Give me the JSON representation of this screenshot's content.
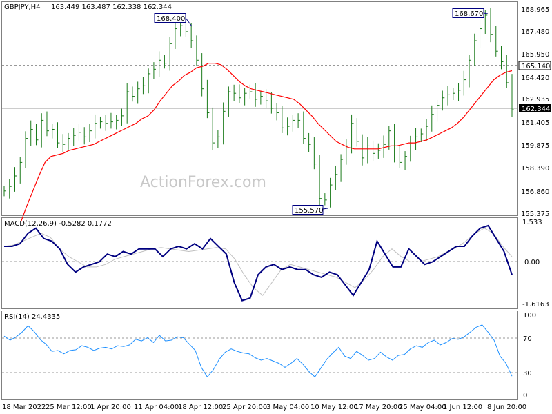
{
  "header": {
    "symbol": "GBPJPY,H4",
    "ohlc": "163.449 163.487 162.338 162.344"
  },
  "watermark": "ActionForex.com",
  "colors": {
    "candle": "#1a7a1a",
    "ma": "#ff0000",
    "macd": "#000080",
    "signal": "#c0c0c0",
    "rsi": "#1e90ff",
    "grid": "#808080"
  },
  "chart_data": [
    {
      "type": "line",
      "panel": "price",
      "title": "GBPJPY,H4",
      "ylim": [
        155.375,
        168.965
      ],
      "y_ticks": [
        "168.965",
        "167.480",
        "165.950",
        "164.420",
        "162.935",
        "161.405",
        "159.875",
        "158.390",
        "156.860",
        "155.375"
      ],
      "x_ticks": [
        "18 Mar 2022",
        "25 Mar 12:00",
        "1 Apr 20:00",
        "11 Apr 04:00",
        "18 Apr 12:00",
        "25 Apr 20:00",
        "3 May 04:00",
        "10 May 12:00",
        "17 May 20:00",
        "25 May 04:00",
        "1 Jun 12:00",
        "8 Jun 20:00"
      ],
      "annotations": [
        "168.400",
        "168.670",
        "155.570"
      ],
      "hlines": [
        "165.140",
        "162.344"
      ],
      "series": [
        {
          "values": [
            156.9,
            157.2,
            157.9,
            158.8,
            160.4,
            161.0,
            160.3,
            161.6,
            160.9,
            161.0,
            160.1,
            160.0,
            160.4,
            160.6,
            160.8,
            160.5,
            160.9,
            161.4,
            161.5,
            161.4,
            161.5,
            161.6,
            161.9,
            163.5,
            163.2,
            163.7,
            163.9,
            164.7,
            165.0,
            165.6,
            165.4,
            166.7,
            167.7,
            167.9,
            167.5,
            166.9,
            165.6,
            163.7,
            162.1,
            160.1,
            160.5,
            162.2,
            163.5,
            163.4,
            163.1,
            163.4,
            163.5,
            163.0,
            163.2,
            162.9,
            162.4,
            162.1,
            161.1,
            161.2,
            161.6,
            161.6,
            160.4,
            160.0,
            158.7,
            156.4,
            156.3,
            157.3,
            158.0,
            159.0,
            159.9,
            161.4,
            160.2,
            159.1,
            159.9,
            159.4,
            159.6,
            160.0,
            160.9,
            159.3,
            158.8,
            159.2,
            160.1,
            160.5,
            160.7,
            161.2,
            162.0,
            162.6,
            163.1,
            163.3,
            163.4,
            163.6,
            164.3,
            165.6,
            166.9,
            167.7,
            168.6,
            167.3,
            166.2,
            165.5,
            164.1,
            162.3
          ]
        },
        {
          "name": "MA",
          "values": [
            154.8,
            155.9,
            156.9,
            157.9,
            158.8,
            159.2,
            159.3,
            159.4,
            159.6,
            159.7,
            159.8,
            159.9,
            160.0,
            160.2,
            160.4,
            160.6,
            160.8,
            161.0,
            161.2,
            161.4,
            161.7,
            161.9,
            162.3,
            162.9,
            163.4,
            163.9,
            164.2,
            164.6,
            164.8,
            165.1,
            165.2,
            165.4,
            165.4,
            165.3,
            165.0,
            164.6,
            164.2,
            163.9,
            163.7,
            163.6,
            163.5,
            163.4,
            163.3,
            163.2,
            163.1,
            163.0,
            162.7,
            162.3,
            161.9,
            161.4,
            161.0,
            160.6,
            160.2,
            160.0,
            159.8,
            159.7,
            159.7,
            159.7,
            159.7,
            159.7,
            159.8,
            159.9,
            159.9,
            160.0,
            160.1,
            160.1,
            160.2,
            160.3,
            160.5,
            160.7,
            160.9,
            161.1,
            161.4,
            161.8,
            162.3,
            162.8,
            163.3,
            163.8,
            164.3,
            164.6,
            164.8,
            164.9
          ]
        }
      ]
    },
    {
      "type": "line",
      "panel": "macd",
      "title": "MACD(12,26,9) -0.5282 0.1772",
      "ylim": [
        -1.6163,
        1.533
      ],
      "y_ticks": [
        "1.533",
        "0.00",
        "-1.6163"
      ],
      "series": [
        {
          "name": "MACD",
          "values": [
            0.6,
            0.6,
            0.7,
            1.1,
            1.3,
            0.9,
            0.8,
            0.5,
            -0.1,
            -0.4,
            -0.2,
            -0.1,
            0.0,
            0.3,
            0.2,
            0.4,
            0.3,
            0.5,
            0.5,
            0.5,
            0.2,
            0.5,
            0.6,
            0.5,
            0.7,
            0.5,
            0.9,
            0.6,
            0.3,
            -0.8,
            -1.5,
            -1.4,
            -0.5,
            -0.2,
            -0.1,
            -0.3,
            -0.2,
            -0.3,
            -0.3,
            -0.5,
            -0.6,
            -0.4,
            -0.5,
            -0.9,
            -1.3,
            -0.8,
            -0.3,
            0.8,
            0.3,
            -0.2,
            -0.2,
            0.5,
            0.2,
            -0.1,
            0.0,
            0.2,
            0.4,
            0.6,
            0.6,
            1.0,
            1.3,
            1.4,
            0.9,
            0.4,
            -0.5
          ]
        },
        {
          "name": "Signal",
          "values": [
            0.6,
            0.65,
            0.8,
            0.95,
            1.1,
            0.95,
            0.5,
            0.2,
            0.0,
            -0.2,
            -0.2,
            -0.1,
            0.1,
            0.2,
            0.3,
            0.4,
            0.5,
            0.55,
            0.5,
            0.45,
            0.4,
            0.45,
            0.5,
            0.55,
            0.5,
            0.1,
            -0.5,
            -1.0,
            -1.3,
            -0.8,
            -0.3,
            -0.1,
            -0.2,
            -0.3,
            -0.4,
            -0.5,
            -0.6,
            -0.8,
            -1.0,
            -0.7,
            -0.3,
            0.2,
            0.5,
            0.2,
            0.0,
            0.0,
            0.1,
            0.2,
            0.4,
            0.55,
            0.8,
            1.1,
            1.3,
            1.1,
            0.6,
            0.2
          ]
        }
      ]
    },
    {
      "type": "line",
      "panel": "rsi",
      "title": "RSI(14) 24.4335",
      "ylim": [
        0,
        100
      ],
      "y_ticks": [
        "100",
        "70",
        "30",
        "0"
      ],
      "hlines": [
        70,
        30
      ],
      "series": [
        {
          "name": "RSI",
          "values": [
            74,
            69,
            73,
            79,
            87,
            80,
            70,
            64,
            55,
            56,
            52,
            56,
            57,
            62,
            60,
            56,
            59,
            60,
            58,
            62,
            61,
            63,
            70,
            68,
            72,
            66,
            75,
            68,
            69,
            73,
            72,
            64,
            56,
            35,
            23,
            32,
            45,
            54,
            58,
            55,
            53,
            52,
            47,
            44,
            46,
            43,
            40,
            35,
            40,
            46,
            39,
            30,
            23,
            34,
            45,
            53,
            60,
            49,
            46,
            55,
            50,
            44,
            46,
            54,
            48,
            44,
            50,
            51,
            58,
            62,
            60,
            66,
            69,
            63,
            66,
            71,
            70,
            73,
            79,
            85,
            88,
            79,
            69,
            49,
            40,
            24
          ]
        }
      ]
    }
  ]
}
